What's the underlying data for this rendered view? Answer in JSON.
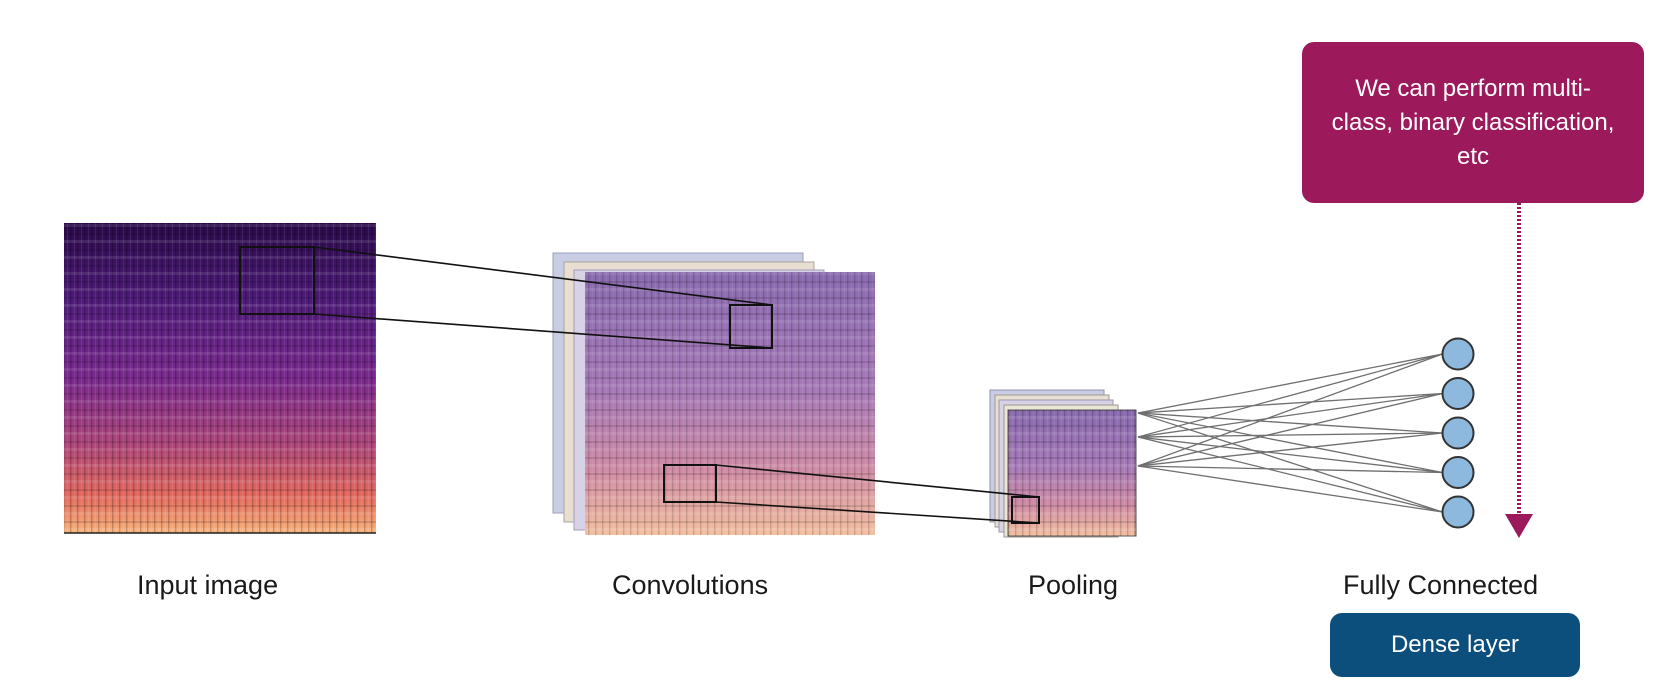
{
  "stages": {
    "input_label": "Input image",
    "convolutions_label": "Convolutions",
    "pooling_label": "Pooling",
    "fully_connected_label": "Fully Connected"
  },
  "callout": {
    "text": "We can perform multi-class, binary classification, etc",
    "color": "#9c1a5c"
  },
  "dense_badge": {
    "text": "Dense layer",
    "color": "#0d4f7c"
  },
  "fully_connected": {
    "node_count": 5,
    "node_color": "#8db9de"
  },
  "spectrogram_colors": [
    "#2a0a4a",
    "#4f1c7a",
    "#7b2a8f",
    "#b0487a",
    "#e36a5f",
    "#f7b27a"
  ]
}
